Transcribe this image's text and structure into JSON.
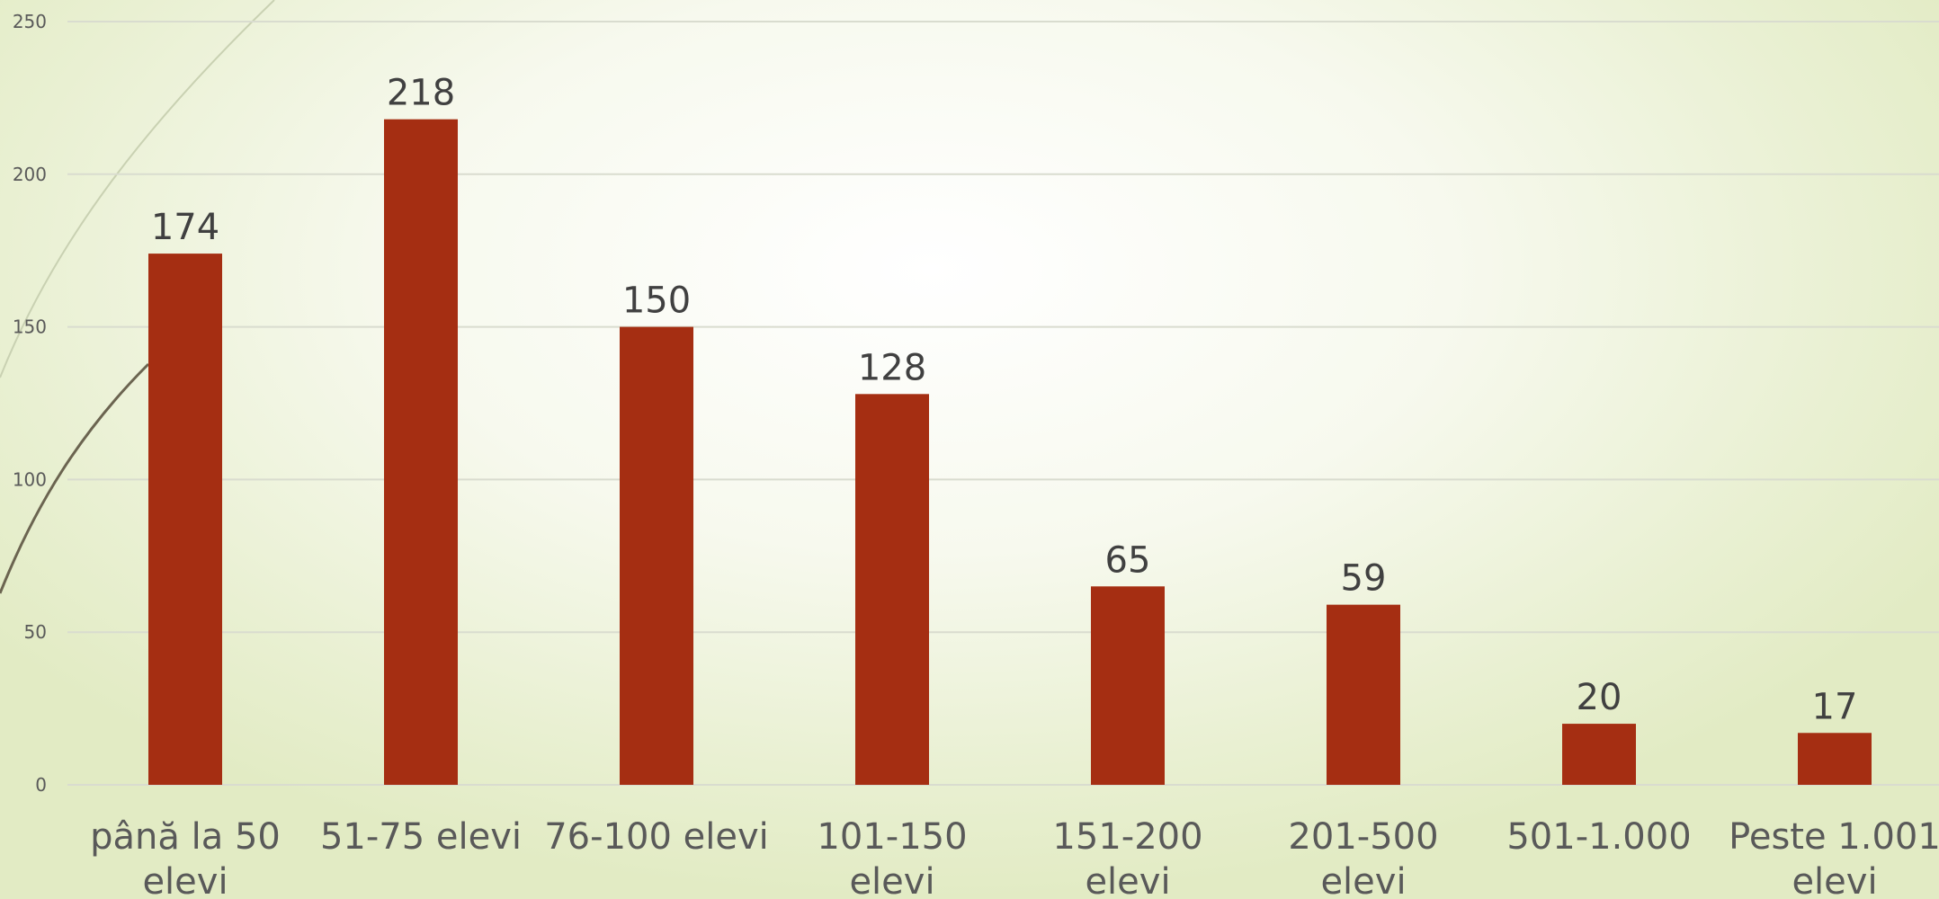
{
  "chart_data": {
    "type": "bar",
    "categories": [
      [
        "până la 50",
        "elevi"
      ],
      [
        "51-75 elevi"
      ],
      [
        "76-100 elevi"
      ],
      [
        "101-150",
        "elevi"
      ],
      [
        "151-200",
        "elevi"
      ],
      [
        "201-500",
        "elevi"
      ],
      [
        "501-1.000"
      ],
      [
        "Peste 1.001",
        "elevi"
      ]
    ],
    "values": [
      174,
      218,
      150,
      128,
      65,
      59,
      20,
      17
    ],
    "data_labels": [
      "174",
      "218",
      "150",
      "128",
      "65",
      "59",
      "20",
      "17"
    ],
    "ylim": [
      0,
      250
    ],
    "yticks": [
      "0",
      "50",
      "100",
      "150",
      "200",
      "250"
    ],
    "title": "",
    "xlabel": "",
    "ylabel": "",
    "grid": true,
    "legend": "none",
    "colors": {
      "bar": "#a52e12",
      "grid": "#d9dccf",
      "text": "#404040",
      "tick": "#595959",
      "arc_light": "#c9d1b2",
      "arc_dark": "#6b6450"
    }
  }
}
